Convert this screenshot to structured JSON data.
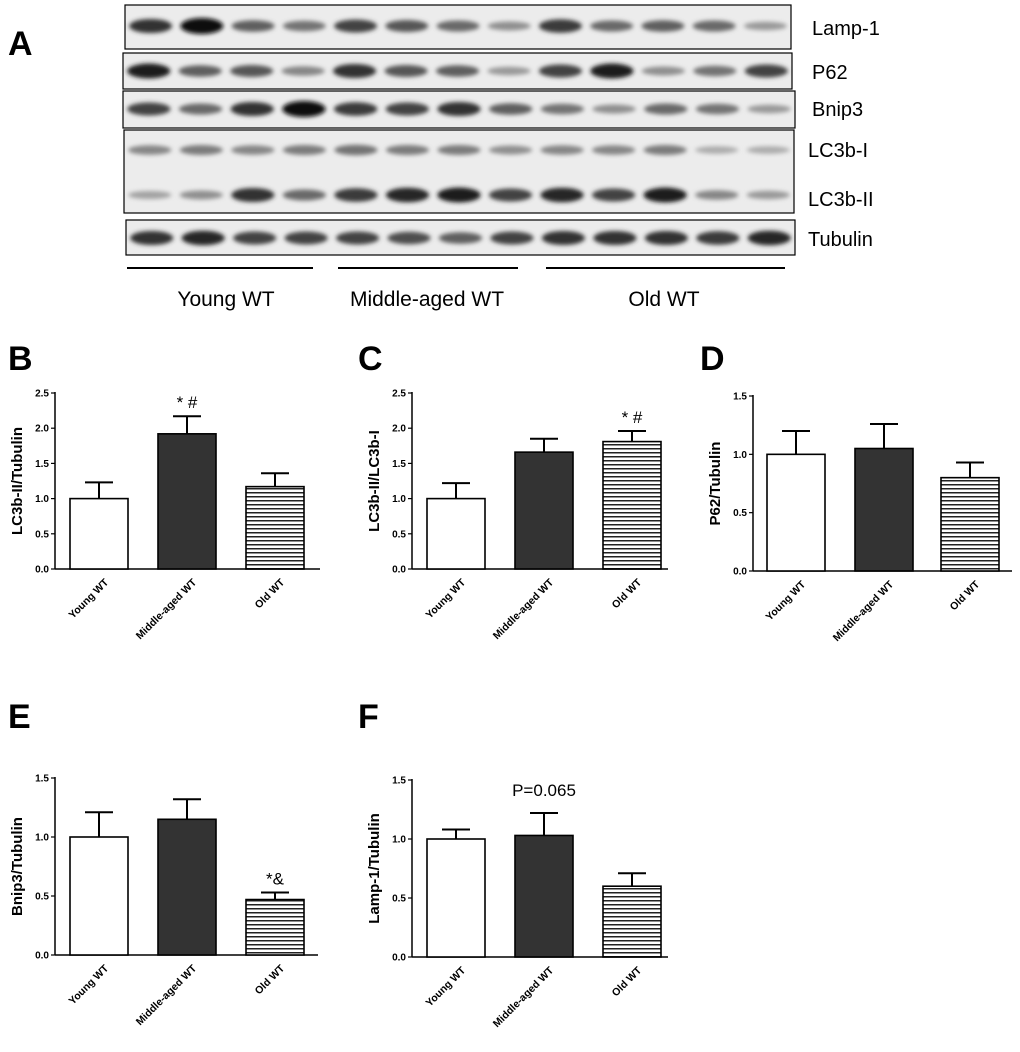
{
  "figure": {
    "panel_a": {
      "letter": "A",
      "rows": [
        "Lamp-1",
        "P62",
        "Bnip3",
        "LC3b-I",
        "LC3b-II",
        "Tubulin"
      ],
      "groups": [
        "Young WT",
        "Middle-aged WT",
        "Old WT"
      ]
    }
  },
  "chart_data": [
    {
      "panel": "B",
      "type": "bar",
      "categories": [
        "Young WT",
        "Middle-aged WT",
        "Old WT"
      ],
      "values": [
        1.0,
        1.92,
        1.17
      ],
      "errors": [
        0.23,
        0.25,
        0.19
      ],
      "annotations": [
        "",
        "* #",
        ""
      ],
      "ylabel": "LC3b-II/Tubulin",
      "ylim": [
        0,
        2.5
      ],
      "yticks": [
        "0.0",
        "0.5",
        "1.0",
        "1.5",
        "2.0",
        "2.5"
      ],
      "fills": [
        "white",
        "#333333",
        "stripes"
      ]
    },
    {
      "panel": "C",
      "type": "bar",
      "categories": [
        "Young WT",
        "Middle-aged WT",
        "Old WT"
      ],
      "values": [
        1.0,
        1.66,
        1.81
      ],
      "errors": [
        0.22,
        0.19,
        0.15
      ],
      "annotations": [
        "",
        "",
        "* #"
      ],
      "ylabel": "LC3b-II/LC3b-I",
      "ylim": [
        0,
        2.5
      ],
      "yticks": [
        "0.0",
        "0.5",
        "1.0",
        "1.5",
        "2.0",
        "2.5"
      ],
      "fills": [
        "white",
        "#333333",
        "stripes"
      ]
    },
    {
      "panel": "D",
      "type": "bar",
      "categories": [
        "Young WT",
        "Middle-aged WT",
        "Old WT"
      ],
      "values": [
        1.0,
        1.05,
        0.8
      ],
      "errors": [
        0.2,
        0.21,
        0.13
      ],
      "annotations": [
        "",
        "",
        ""
      ],
      "ylabel": "P62/Tubulin",
      "ylim": [
        0,
        1.5
      ],
      "yticks": [
        "0.0",
        "0.5",
        "1.0",
        "1.5"
      ],
      "fills": [
        "white",
        "#333333",
        "stripes"
      ]
    },
    {
      "panel": "E",
      "type": "bar",
      "categories": [
        "Young WT",
        "Middle-aged WT",
        "Old WT"
      ],
      "values": [
        1.0,
        1.15,
        0.47
      ],
      "errors": [
        0.21,
        0.17,
        0.06
      ],
      "annotations": [
        "",
        "",
        "*&"
      ],
      "ylabel": "Bnip3/Tubulin",
      "ylim": [
        0,
        1.5
      ],
      "yticks": [
        "0.0",
        "0.5",
        "1.0",
        "1.5"
      ],
      "fills": [
        "white",
        "#333333",
        "stripes"
      ]
    },
    {
      "panel": "F",
      "type": "bar",
      "categories": [
        "Young WT",
        "Middle-aged WT",
        "Old WT"
      ],
      "values": [
        1.0,
        1.03,
        0.6
      ],
      "errors": [
        0.08,
        0.19,
        0.11
      ],
      "annotations": [
        "",
        "",
        ""
      ],
      "top_note": "P=0.065",
      "ylabel": "Lamp-1/Tubulin",
      "ylim": [
        0,
        1.5
      ],
      "yticks": [
        "0.0",
        "0.5",
        "1.0",
        "1.5"
      ],
      "fills": [
        "white",
        "#333333",
        "stripes"
      ]
    }
  ]
}
